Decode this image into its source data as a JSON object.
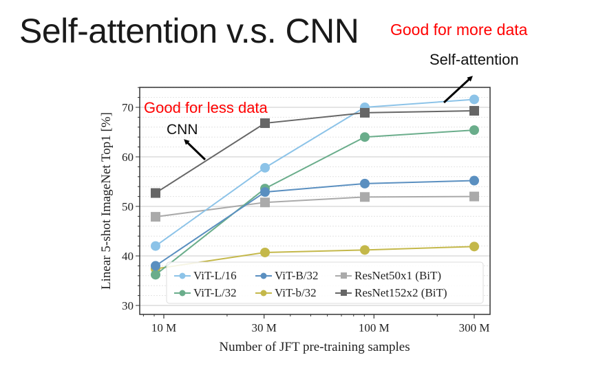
{
  "slide": {
    "title": "Self-attention v.s. CNN",
    "note_more_data": "Good for more data",
    "note_self_attention": "Self-attention",
    "note_less_data": "Good for less data",
    "note_cnn": "CNN"
  },
  "colors": {
    "annotation_red": "#ff0000",
    "arrow": "#000000"
  },
  "chart_data": {
    "type": "line",
    "title": "",
    "xlabel": "Number of JFT pre-training samples",
    "ylabel": "Linear 5-shot ImageNet Top1 [%]",
    "x_scale": "log",
    "categories": [
      "10 M",
      "30 M",
      "100 M",
      "300 M"
    ],
    "x": [
      9,
      30,
      90,
      300
    ],
    "x_ticks": [
      10,
      30,
      100,
      300
    ],
    "x_tick_labels": [
      "10 M",
      "30 M",
      "100 M",
      "300 M"
    ],
    "ylim": [
      28,
      74
    ],
    "y_ticks": [
      30,
      40,
      50,
      60,
      70
    ],
    "y_tick_labels": [
      "30",
      "40",
      "50",
      "60",
      "70"
    ],
    "grid": true,
    "legend_position": "bottom-right",
    "series": [
      {
        "name": "ViT-L/16",
        "color": "#8cc3e8",
        "marker": "circle",
        "values": [
          42.0,
          57.8,
          70.0,
          71.6
        ]
      },
      {
        "name": "ViT-L/32",
        "color": "#6aad8b",
        "marker": "circle",
        "values": [
          36.2,
          53.6,
          64.0,
          65.4
        ]
      },
      {
        "name": "ViT-B/32",
        "color": "#5a8fc0",
        "marker": "circle",
        "values": [
          38.0,
          52.9,
          54.6,
          55.2
        ]
      },
      {
        "name": "ViT-b/32",
        "color": "#c4b84a",
        "marker": "circle",
        "values": [
          37.4,
          40.7,
          41.2,
          41.9
        ]
      },
      {
        "name": "ResNet50x1 (BiT)",
        "color": "#aaaaaa",
        "marker": "square",
        "values": [
          47.9,
          50.8,
          51.9,
          52.0
        ]
      },
      {
        "name": "ResNet152x2 (BiT)",
        "color": "#666666",
        "marker": "square",
        "values": [
          52.7,
          66.8,
          68.9,
          69.3
        ]
      }
    ],
    "legend_order": [
      "ViT-L/16",
      "ViT-B/32",
      "ResNet50x1 (BiT)",
      "ViT-L/32",
      "ViT-b/32",
      "ResNet152x2 (BiT)"
    ],
    "annotations": [
      {
        "text": "Good for less data",
        "color": "#ff0000"
      },
      {
        "text": "CNN",
        "arrow_to_series": "ResNet152x2 (BiT)"
      },
      {
        "text": "Self-attention",
        "arrow_to_series": "ViT-L/16"
      },
      {
        "text": "Good for more data",
        "color": "#ff0000"
      }
    ]
  }
}
